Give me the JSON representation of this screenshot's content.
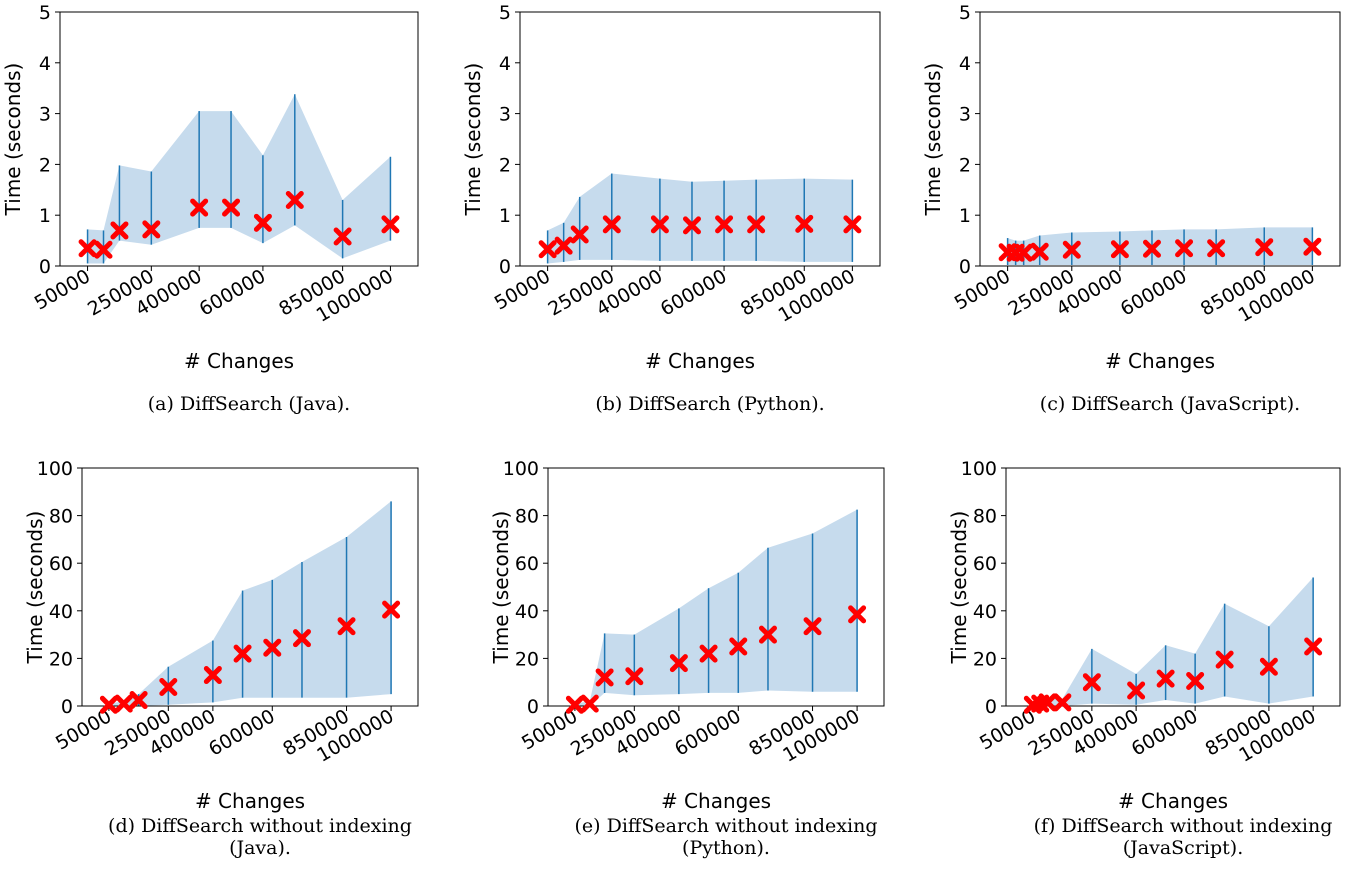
{
  "chart_data": [
    {
      "type": "scatter",
      "caption": [
        "(a) DiffSearch (Java)."
      ],
      "xlabel": "# Changes",
      "ylabel": "Time (seconds)",
      "xticks": [
        50000,
        250000,
        400000,
        600000,
        850000,
        1000000
      ],
      "ylim": [
        0,
        5
      ],
      "yticks": [
        0,
        1,
        2,
        3,
        4,
        5
      ],
      "grid": false,
      "x": [
        50000,
        100000,
        150000,
        250000,
        400000,
        500000,
        600000,
        700000,
        850000,
        1000000
      ],
      "mean": [
        0.35,
        0.32,
        0.7,
        0.72,
        1.15,
        1.15,
        0.85,
        1.3,
        0.58,
        0.82
      ],
      "min": [
        0.05,
        0.05,
        0.5,
        0.42,
        0.75,
        0.75,
        0.45,
        0.8,
        0.15,
        0.5
      ],
      "max": [
        0.72,
        0.7,
        1.98,
        1.86,
        3.05,
        3.05,
        2.18,
        3.38,
        1.3,
        2.15
      ]
    },
    {
      "type": "scatter",
      "caption": [
        "(b) DiffSearch (Python)."
      ],
      "xlabel": "# Changes",
      "ylabel": "Time (seconds)",
      "xticks": [
        50000,
        250000,
        400000,
        600000,
        850000,
        1000000
      ],
      "ylim": [
        0,
        5
      ],
      "yticks": [
        0,
        1,
        2,
        3,
        4,
        5
      ],
      "grid": false,
      "x": [
        50000,
        100000,
        150000,
        250000,
        400000,
        500000,
        600000,
        700000,
        850000,
        1000000
      ],
      "mean": [
        0.33,
        0.4,
        0.62,
        0.82,
        0.82,
        0.8,
        0.82,
        0.82,
        0.83,
        0.82
      ],
      "min": [
        0.05,
        0.08,
        0.12,
        0.12,
        0.1,
        0.1,
        0.1,
        0.1,
        0.08,
        0.08
      ],
      "max": [
        0.7,
        0.85,
        1.36,
        1.82,
        1.72,
        1.66,
        1.68,
        1.7,
        1.72,
        1.7
      ]
    },
    {
      "type": "scatter",
      "caption": [
        "(c) DiffSearch (JavaScript)."
      ],
      "xlabel": "# Changes",
      "ylabel": "Time (seconds)",
      "xticks": [
        50000,
        250000,
        400000,
        600000,
        850000,
        1000000
      ],
      "ylim": [
        0,
        5
      ],
      "yticks": [
        0,
        1,
        2,
        3,
        4,
        5
      ],
      "grid": false,
      "x": [
        50000,
        75000,
        100000,
        150000,
        250000,
        400000,
        500000,
        600000,
        700000,
        850000,
        1000000
      ],
      "mean": [
        0.27,
        0.26,
        0.26,
        0.28,
        0.32,
        0.33,
        0.34,
        0.35,
        0.35,
        0.37,
        0.38
      ],
      "min": [
        0.02,
        0.02,
        0.02,
        0.02,
        0.02,
        0.02,
        0.02,
        0.02,
        0.02,
        0.02,
        0.02
      ],
      "max": [
        0.55,
        0.5,
        0.5,
        0.6,
        0.66,
        0.68,
        0.7,
        0.72,
        0.72,
        0.76,
        0.76
      ]
    },
    {
      "type": "scatter",
      "caption": [
        "(d) DiffSearch without indexing",
        "(Java)."
      ],
      "xlabel": "# Changes",
      "ylabel": "Time (seconds)",
      "xticks": [
        50000,
        250000,
        400000,
        600000,
        850000,
        1000000
      ],
      "ylim": [
        0,
        100
      ],
      "yticks": [
        0,
        20,
        40,
        60,
        80,
        100
      ],
      "grid": false,
      "x": [
        50000,
        100000,
        150000,
        250000,
        400000,
        500000,
        600000,
        700000,
        850000,
        1000000
      ],
      "mean": [
        0.5,
        1.0,
        2.5,
        8.0,
        13.0,
        22.0,
        24.5,
        28.5,
        33.5,
        40.5
      ],
      "min": [
        0.0,
        0.0,
        0.0,
        0.5,
        1.5,
        3.5,
        3.5,
        3.5,
        3.5,
        5.0
      ],
      "max": [
        1.0,
        2.0,
        5.0,
        16.5,
        27.5,
        48.5,
        53.0,
        60.5,
        71.0,
        86.0
      ]
    },
    {
      "type": "scatter",
      "caption": [
        "(e) DiffSearch without indexing",
        "(Python)."
      ],
      "xlabel": "# Changes",
      "ylabel": "Time (seconds)",
      "xticks": [
        50000,
        250000,
        400000,
        600000,
        850000,
        1000000
      ],
      "ylim": [
        0,
        100
      ],
      "yticks": [
        0,
        20,
        40,
        60,
        80,
        100
      ],
      "grid": false,
      "x": [
        50000,
        100000,
        150000,
        250000,
        400000,
        500000,
        600000,
        700000,
        850000,
        1000000
      ],
      "mean": [
        0.5,
        1.0,
        12.0,
        12.5,
        18.0,
        22.0,
        25.0,
        30.0,
        33.5,
        38.5
      ],
      "min": [
        0.0,
        0.0,
        5.5,
        4.5,
        5.0,
        5.5,
        5.5,
        6.5,
        6.0,
        6.0
      ],
      "max": [
        1.0,
        2.0,
        30.5,
        30.0,
        41.0,
        49.5,
        56.0,
        66.5,
        72.5,
        82.5
      ]
    },
    {
      "type": "scatter",
      "caption": [
        "(f) DiffSearch without indexing",
        "(JavaScript)."
      ],
      "xlabel": "# Changes",
      "ylabel": "Time (seconds)",
      "xticks": [
        50000,
        250000,
        400000,
        600000,
        850000,
        1000000
      ],
      "ylim": [
        0,
        100
      ],
      "yticks": [
        0,
        20,
        40,
        60,
        80,
        100
      ],
      "grid": false,
      "x": [
        50000,
        75000,
        100000,
        150000,
        250000,
        400000,
        500000,
        600000,
        700000,
        850000,
        1000000
      ],
      "mean": [
        0.5,
        1.0,
        1.5,
        1.5,
        10.0,
        6.5,
        11.5,
        10.5,
        19.5,
        16.5,
        25.0
      ],
      "min": [
        0.0,
        0.0,
        0.0,
        0.0,
        1.0,
        0.5,
        2.5,
        1.0,
        4.0,
        1.0,
        4.0
      ],
      "max": [
        1.5,
        2.0,
        3.0,
        3.0,
        24.0,
        13.5,
        25.5,
        22.0,
        43.0,
        33.5,
        54.0
      ]
    }
  ]
}
